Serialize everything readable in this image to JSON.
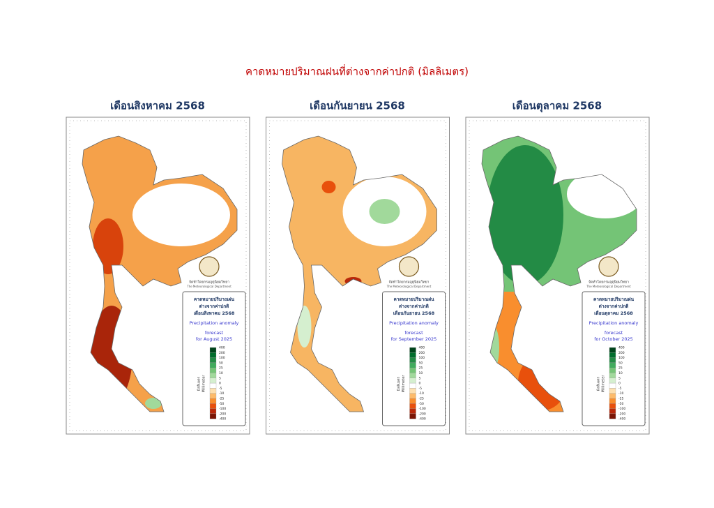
{
  "title": "คาดหมายปริมาณฝนที่ต่างจากค่าปกติ (มิลลิเมตร)",
  "panels": [
    {
      "heading": "เดือนสิงหาคม 2568",
      "legend": {
        "lines": [
          "คาดหมายปริมาณฝน",
          "ต่างจากค่าปกติ",
          "เดือนสิงหาคม 2568"
        ],
        "subtitle": "Precipitation anomaly",
        "forecast": "forecast",
        "period": "for August 2025"
      }
    },
    {
      "heading": "เดือนกันยายน 2568",
      "legend": {
        "lines": [
          "คาดหมายปริมาณฝน",
          "ต่างจากค่าปกติ",
          "เดือนกันยายน 2568"
        ],
        "subtitle": "Precipitation anomaly",
        "forecast": "forecast",
        "period": "for September 2025"
      }
    },
    {
      "heading": "เดือนตุลาคม 2568",
      "legend": {
        "lines": [
          "คาดหมายปริมาณฝน",
          "ต่างจากค่าปกติ",
          "เดือนตุลาคม 2568"
        ],
        "subtitle": "Precipitation anomaly",
        "forecast": "forecast",
        "period": "for October 2025"
      }
    }
  ],
  "scale": {
    "labels": [
      400,
      200,
      100,
      50,
      25,
      10,
      5,
      0,
      -5,
      -10,
      -25,
      -50,
      -100,
      -200,
      -400
    ],
    "colors": [
      "#00441b",
      "#006d2c",
      "#238b45",
      "#41ab5d",
      "#74c476",
      "#a1d99b",
      "#d5efcf",
      "#ffffff",
      "#fde0b0",
      "#fdbb6b",
      "#f98e2e",
      "#e8500c",
      "#b8280a",
      "#7a1505"
    ],
    "unit_th": "มิลลิเมตร",
    "unit_en": "Millimeter"
  },
  "department": {
    "th": "จัดทำโดยกรมอุตุนิยมวิทยา",
    "en": "The Meteorological Department"
  }
}
